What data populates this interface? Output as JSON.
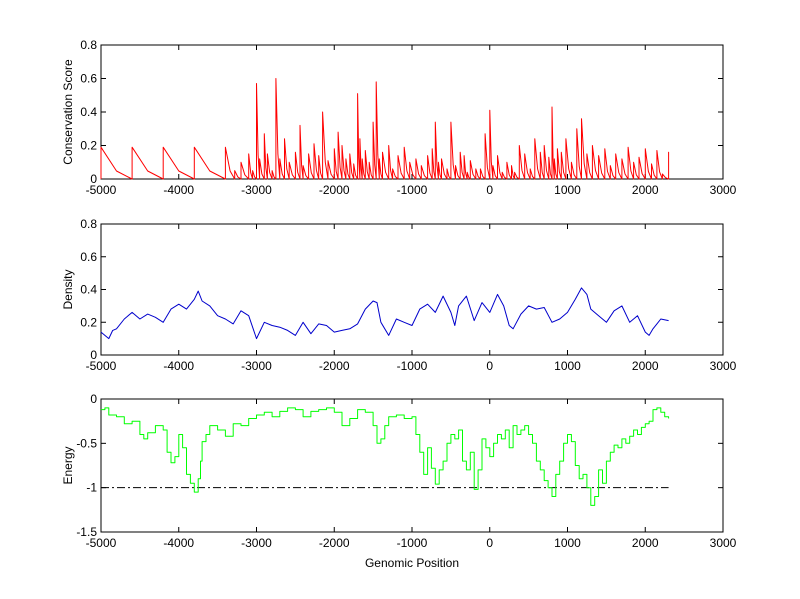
{
  "chart_data": [
    {
      "type": "line",
      "ylabel": "Conservation Score",
      "xlim": [
        -5000,
        3000
      ],
      "ylim": [
        0,
        0.8
      ],
      "xticks": [
        "-5000",
        "-4000",
        "-3000",
        "-2000",
        "-1000",
        "0",
        "1000",
        "2000",
        "3000"
      ],
      "yticks": [
        "0",
        "0.2",
        "0.4",
        "0.6",
        "0.8"
      ],
      "color": "#ff0000",
      "grid": false,
      "data_range": [
        -5000,
        2300
      ],
      "series": [
        {
          "x": [
            -5000,
            -4600,
            -4200,
            -3800,
            -3400,
            -3280,
            -3200,
            -3100,
            -3050,
            -3000,
            -2960,
            -2900,
            -2860,
            -2800,
            -2750,
            -2700,
            -2640,
            -2580,
            -2500,
            -2440,
            -2400,
            -2330,
            -2260,
            -2200,
            -2150,
            -2080,
            -2000,
            -1950,
            -1900,
            -1850,
            -1800,
            -1750,
            -1700,
            -1670,
            -1640,
            -1600,
            -1550,
            -1500,
            -1460,
            -1420,
            -1380,
            -1300,
            -1250,
            -1180,
            -1100,
            -1030,
            -950,
            -880,
            -800,
            -740,
            -700,
            -660,
            -620,
            -550,
            -500,
            -440,
            -380,
            -330,
            -290,
            -250,
            -180,
            -120,
            -60,
            0,
            40,
            100,
            160,
            220,
            280,
            320,
            380,
            450,
            520,
            580,
            650,
            700,
            760,
            800,
            830,
            870,
            920,
            980,
            1050,
            1120,
            1180,
            1250,
            1320,
            1400,
            1480,
            1550,
            1620,
            1700,
            1780,
            1850,
            1920,
            2000,
            2080,
            2150,
            2220,
            2300
          ],
          "y": [
            0.19,
            0.19,
            0.19,
            0.19,
            0.19,
            0.05,
            0.1,
            0.15,
            0.05,
            0.57,
            0.12,
            0.27,
            0.15,
            0.05,
            0.6,
            0.12,
            0.24,
            0.1,
            0.16,
            0.32,
            0.08,
            0.15,
            0.21,
            0.14,
            0.4,
            0.11,
            0.18,
            0.28,
            0.2,
            0.12,
            0.15,
            0.09,
            0.51,
            0.24,
            0.12,
            0.17,
            0.1,
            0.34,
            0.58,
            0.12,
            0.16,
            0.2,
            0.06,
            0.14,
            0.19,
            0.1,
            0.12,
            0.08,
            0.14,
            0.18,
            0.34,
            0.1,
            0.12,
            0.06,
            0.34,
            0.08,
            0.16,
            0.14,
            0.04,
            0.11,
            0.06,
            0.06,
            0.27,
            0.41,
            0.08,
            0.14,
            0.04,
            0.1,
            0.08,
            0.04,
            0.2,
            0.15,
            0.06,
            0.24,
            0.16,
            0.2,
            0.13,
            0.43,
            0.12,
            0.18,
            0.16,
            0.24,
            0.1,
            0.3,
            0.36,
            0.15,
            0.2,
            0.14,
            0.18,
            0.08,
            0.15,
            0.12,
            0.19,
            0.1,
            0.13,
            0.18,
            0.09,
            0.17,
            0.03,
            0.16
          ]
        }
      ]
    },
    {
      "type": "line",
      "ylabel": "Density",
      "xlim": [
        -5000,
        3000
      ],
      "ylim": [
        0,
        0.8
      ],
      "xticks": [
        "-5000",
        "-4000",
        "-3000",
        "-2000",
        "-1000",
        "0",
        "1000",
        "2000",
        "3000"
      ],
      "yticks": [
        "0",
        "0.2",
        "0.4",
        "0.6",
        "0.8"
      ],
      "color": "#0000cc",
      "grid": false,
      "series": [
        {
          "x": [
            -5000,
            -4950,
            -4900,
            -4850,
            -4800,
            -4700,
            -4600,
            -4500,
            -4400,
            -4300,
            -4200,
            -4100,
            -4000,
            -3900,
            -3800,
            -3750,
            -3700,
            -3600,
            -3500,
            -3400,
            -3300,
            -3200,
            -3100,
            -3000,
            -2900,
            -2800,
            -2700,
            -2600,
            -2500,
            -2400,
            -2300,
            -2200,
            -2100,
            -2000,
            -1900,
            -1800,
            -1700,
            -1600,
            -1500,
            -1450,
            -1400,
            -1300,
            -1200,
            -1100,
            -1000,
            -900,
            -800,
            -700,
            -600,
            -500,
            -450,
            -400,
            -300,
            -200,
            -100,
            0,
            100,
            180,
            250,
            300,
            400,
            500,
            600,
            700,
            800,
            900,
            1000,
            1100,
            1180,
            1250,
            1300,
            1400,
            1500,
            1600,
            1700,
            1800,
            1900,
            2000,
            2050,
            2100,
            2150,
            2200,
            2300
          ],
          "y": [
            0.14,
            0.12,
            0.1,
            0.15,
            0.16,
            0.22,
            0.26,
            0.22,
            0.25,
            0.23,
            0.2,
            0.28,
            0.31,
            0.28,
            0.34,
            0.39,
            0.33,
            0.3,
            0.24,
            0.22,
            0.19,
            0.27,
            0.24,
            0.1,
            0.2,
            0.18,
            0.17,
            0.15,
            0.12,
            0.2,
            0.13,
            0.19,
            0.18,
            0.14,
            0.15,
            0.16,
            0.19,
            0.28,
            0.33,
            0.32,
            0.2,
            0.12,
            0.22,
            0.2,
            0.18,
            0.28,
            0.31,
            0.26,
            0.36,
            0.26,
            0.18,
            0.3,
            0.36,
            0.21,
            0.32,
            0.26,
            0.37,
            0.3,
            0.18,
            0.16,
            0.25,
            0.3,
            0.28,
            0.29,
            0.2,
            0.22,
            0.26,
            0.34,
            0.41,
            0.37,
            0.28,
            0.24,
            0.2,
            0.27,
            0.3,
            0.2,
            0.24,
            0.14,
            0.12,
            0.16,
            0.19,
            0.22,
            0.21
          ]
        }
      ]
    },
    {
      "type": "line",
      "ylabel": "Energy",
      "xlabel": "Genomic Position",
      "xlim": [
        -5000,
        3000
      ],
      "ylim": [
        -1.5,
        0
      ],
      "xticks": [
        "-5000",
        "-4000",
        "-3000",
        "-2000",
        "-1000",
        "0",
        "1000",
        "2000",
        "3000"
      ],
      "yticks": [
        "-1.5",
        "-1",
        "-0.5",
        "0"
      ],
      "color": "#00ff00",
      "grid": false,
      "series": [
        {
          "x": [
            -5000,
            -4950,
            -4900,
            -4800,
            -4700,
            -4600,
            -4500,
            -4450,
            -4400,
            -4300,
            -4200,
            -4150,
            -4100,
            -4050,
            -4000,
            -3950,
            -3900,
            -3850,
            -3800,
            -3750,
            -3720,
            -3700,
            -3650,
            -3600,
            -3500,
            -3400,
            -3300,
            -3200,
            -3100,
            -3000,
            -2900,
            -2800,
            -2700,
            -2600,
            -2500,
            -2400,
            -2300,
            -2200,
            -2100,
            -2000,
            -1900,
            -1800,
            -1700,
            -1600,
            -1500,
            -1450,
            -1400,
            -1350,
            -1300,
            -1200,
            -1100,
            -1000,
            -950,
            -900,
            -850,
            -800,
            -750,
            -700,
            -650,
            -600,
            -550,
            -500,
            -450,
            -400,
            -350,
            -300,
            -250,
            -200,
            -150,
            -100,
            -50,
            0,
            50,
            100,
            150,
            200,
            250,
            300,
            350,
            400,
            450,
            500,
            550,
            600,
            650,
            700,
            750,
            800,
            850,
            900,
            950,
            1000,
            1050,
            1100,
            1150,
            1200,
            1250,
            1300,
            1350,
            1400,
            1450,
            1500,
            1550,
            1600,
            1650,
            1700,
            1750,
            1800,
            1850,
            1900,
            1950,
            2000,
            2050,
            2100,
            2150,
            2200,
            2250,
            2300
          ],
          "y": [
            -0.12,
            -0.1,
            -0.18,
            -0.2,
            -0.28,
            -0.25,
            -0.4,
            -0.45,
            -0.38,
            -0.3,
            -0.35,
            -0.6,
            -0.72,
            -0.65,
            -0.4,
            -0.55,
            -0.85,
            -0.95,
            -1.05,
            -0.9,
            -0.7,
            -0.48,
            -0.4,
            -0.3,
            -0.35,
            -0.42,
            -0.28,
            -0.3,
            -0.22,
            -0.18,
            -0.15,
            -0.2,
            -0.14,
            -0.1,
            -0.12,
            -0.2,
            -0.14,
            -0.12,
            -0.1,
            -0.15,
            -0.3,
            -0.22,
            -0.12,
            -0.15,
            -0.3,
            -0.5,
            -0.45,
            -0.3,
            -0.2,
            -0.18,
            -0.22,
            -0.2,
            -0.4,
            -0.6,
            -0.85,
            -0.55,
            -0.78,
            -0.96,
            -0.8,
            -0.7,
            -0.5,
            -0.4,
            -0.45,
            -0.35,
            -0.7,
            -0.8,
            -0.6,
            -1.02,
            -0.8,
            -0.45,
            -0.55,
            -0.65,
            -0.5,
            -0.4,
            -0.45,
            -0.35,
            -0.55,
            -0.3,
            -0.4,
            -0.35,
            -0.3,
            -0.4,
            -0.5,
            -0.7,
            -0.8,
            -0.92,
            -1.0,
            -1.1,
            -0.85,
            -0.7,
            -0.5,
            -0.4,
            -0.48,
            -0.75,
            -0.9,
            -0.85,
            -1.0,
            -1.2,
            -1.1,
            -0.8,
            -0.95,
            -0.7,
            -0.6,
            -0.52,
            -0.55,
            -0.45,
            -0.5,
            -0.42,
            -0.35,
            -0.4,
            -0.32,
            -0.28,
            -0.25,
            -0.12,
            -0.1,
            -0.15,
            -0.2,
            -0.22
          ]
        }
      ],
      "reference_line": {
        "y": -1,
        "x": [
          -5000,
          2300
        ],
        "style": "dash-dot",
        "color": "#000000"
      }
    }
  ]
}
